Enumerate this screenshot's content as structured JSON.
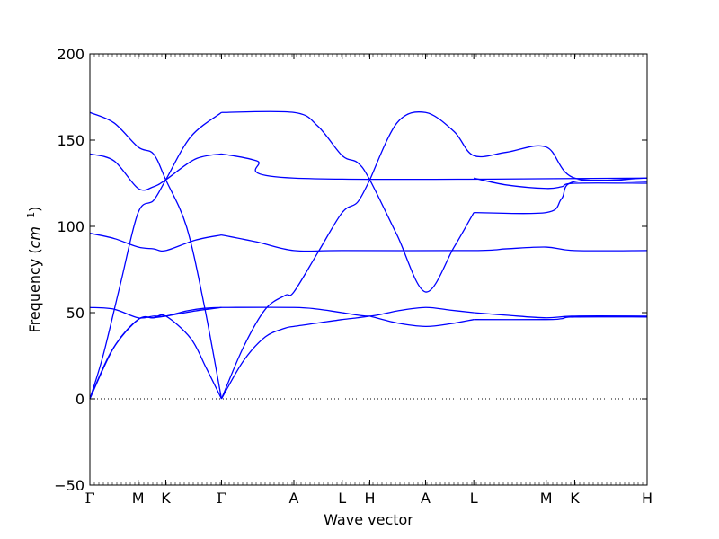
{
  "chart_data": {
    "type": "line",
    "title": "",
    "xlabel": "Wave vector",
    "ylabel": "Frequency",
    "ylabel_unit_base": "cm",
    "ylabel_unit_exp": "−1",
    "ylim": [
      -50,
      200
    ],
    "yticks": [
      -50,
      0,
      50,
      100,
      150,
      200
    ],
    "ytick_labels": [
      "−50",
      "0",
      "50",
      "100",
      "150",
      "200"
    ],
    "xlim": [
      0,
      12.7
    ],
    "xticks": [
      {
        "pos": 0.0,
        "label": "Γ"
      },
      {
        "pos": 1.1,
        "label": "M"
      },
      {
        "pos": 1.73,
        "label": "K"
      },
      {
        "pos": 3.0,
        "label": "Γ"
      },
      {
        "pos": 4.65,
        "label": "A"
      },
      {
        "pos": 5.75,
        "label": "L"
      },
      {
        "pos": 6.38,
        "label": "H"
      },
      {
        "pos": 7.65,
        "label": "A"
      },
      {
        "pos": 8.75,
        "label": "L"
      },
      {
        "pos": 10.4,
        "label": "M"
      },
      {
        "pos": 11.05,
        "label": "K"
      },
      {
        "pos": 12.7,
        "label": "H"
      }
    ],
    "zero_line": {
      "y": 0,
      "style": "dotted"
    },
    "series_color": "#0000ff",
    "series": [
      {
        "x": [
          0,
          0.55,
          1.1,
          1.45,
          1.73,
          2.3,
          2.65,
          3.0
        ],
        "y": [
          0,
          30,
          46,
          47,
          48,
          35,
          18,
          0
        ]
      },
      {
        "x": [
          0,
          0.3,
          0.7,
          1.1,
          1.45,
          1.73,
          2.3,
          3.0
        ],
        "y": [
          0,
          25,
          67,
          108,
          115,
          127,
          152,
          166
        ]
      },
      {
        "x": [
          0,
          0.55,
          1.1,
          1.45,
          1.73,
          2.2,
          2.6,
          3.0
        ],
        "y": [
          53,
          52,
          47,
          48,
          48,
          51,
          52.5,
          53
        ]
      },
      {
        "x": [
          0,
          0.5,
          1.1,
          1.45,
          1.73,
          2.4,
          3.0
        ],
        "y": [
          0,
          28,
          46,
          47,
          48,
          51,
          53
        ]
      },
      {
        "x": [
          0,
          0.55,
          1.1,
          1.45,
          1.73,
          2.4,
          3.0
        ],
        "y": [
          96,
          93,
          88,
          87,
          86,
          92,
          95
        ]
      },
      {
        "x": [
          0,
          0.55,
          1.1,
          1.45,
          1.73,
          2.4,
          3.0
        ],
        "y": [
          142,
          138,
          122,
          123,
          127,
          139,
          142
        ]
      },
      {
        "x": [
          0,
          0.55,
          1.1,
          1.45,
          1.73,
          2.2,
          2.6,
          3.0
        ],
        "y": [
          166,
          160,
          146,
          142,
          127,
          100,
          55,
          0
        ]
      },
      {
        "x": [
          3.0,
          3.5,
          4.0,
          4.45,
          4.65,
          5.2,
          5.75,
          6.1,
          6.38
        ],
        "y": [
          0,
          22,
          36,
          41,
          42,
          44,
          46,
          47,
          48
        ]
      },
      {
        "x": [
          3.0,
          3.5,
          4.0,
          4.45,
          4.65,
          5.2,
          5.75,
          6.1,
          6.38
        ],
        "y": [
          0,
          30,
          52,
          60,
          62,
          85,
          108,
          114,
          127
        ]
      },
      {
        "x": [
          3.0,
          4.65,
          5.2,
          5.75,
          6.38,
          7.0,
          7.65,
          8.2,
          8.75
        ],
        "y": [
          53,
          53,
          52,
          50,
          48,
          51,
          53,
          51.5,
          50
        ]
      },
      {
        "x": [
          6.38,
          7.0,
          7.65,
          8.2,
          8.75
        ],
        "y": [
          48,
          44,
          42,
          43.5,
          46
        ]
      },
      {
        "x": [
          3.0,
          3.8,
          4.65,
          5.75,
          8.75,
          9.5,
          10.4,
          11.05,
          12.7
        ],
        "y": [
          95,
          91,
          86,
          86,
          86,
          87,
          88,
          86,
          86
        ]
      },
      {
        "x": [
          3.0,
          3.8,
          4.65,
          12.7
        ],
        "y": [
          142,
          138,
          128,
          128
        ]
      },
      {
        "x": [
          3.0,
          4.65,
          5.2,
          5.75,
          6.1,
          6.38,
          7.0,
          7.65,
          8.3,
          8.75
        ],
        "y": [
          166,
          166,
          158,
          141,
          137,
          127,
          95,
          62,
          88,
          108
        ]
      },
      {
        "x": [
          6.38,
          7.0,
          7.65,
          8.3,
          8.75,
          9.5,
          10.4,
          11.05,
          12.7
        ],
        "y": [
          127,
          160,
          166,
          155,
          141,
          143,
          146,
          128,
          128
        ]
      },
      {
        "x": [
          8.75,
          10.4,
          10.75,
          11.05,
          12.7
        ],
        "y": [
          108,
          108,
          116,
          126,
          126
        ]
      },
      {
        "x": [
          8.75,
          9.5,
          10.4,
          10.75,
          11.05,
          12.7
        ],
        "y": [
          128,
          124,
          122,
          123,
          125,
          125
        ]
      },
      {
        "x": [
          8.75,
          9.5,
          10.4,
          11.05,
          12.7
        ],
        "y": [
          50,
          48.5,
          47,
          48,
          48
        ]
      },
      {
        "x": [
          8.75,
          10.4,
          10.75,
          11.05,
          12.7
        ],
        "y": [
          46,
          46,
          46.5,
          47.5,
          47.5
        ]
      }
    ]
  }
}
